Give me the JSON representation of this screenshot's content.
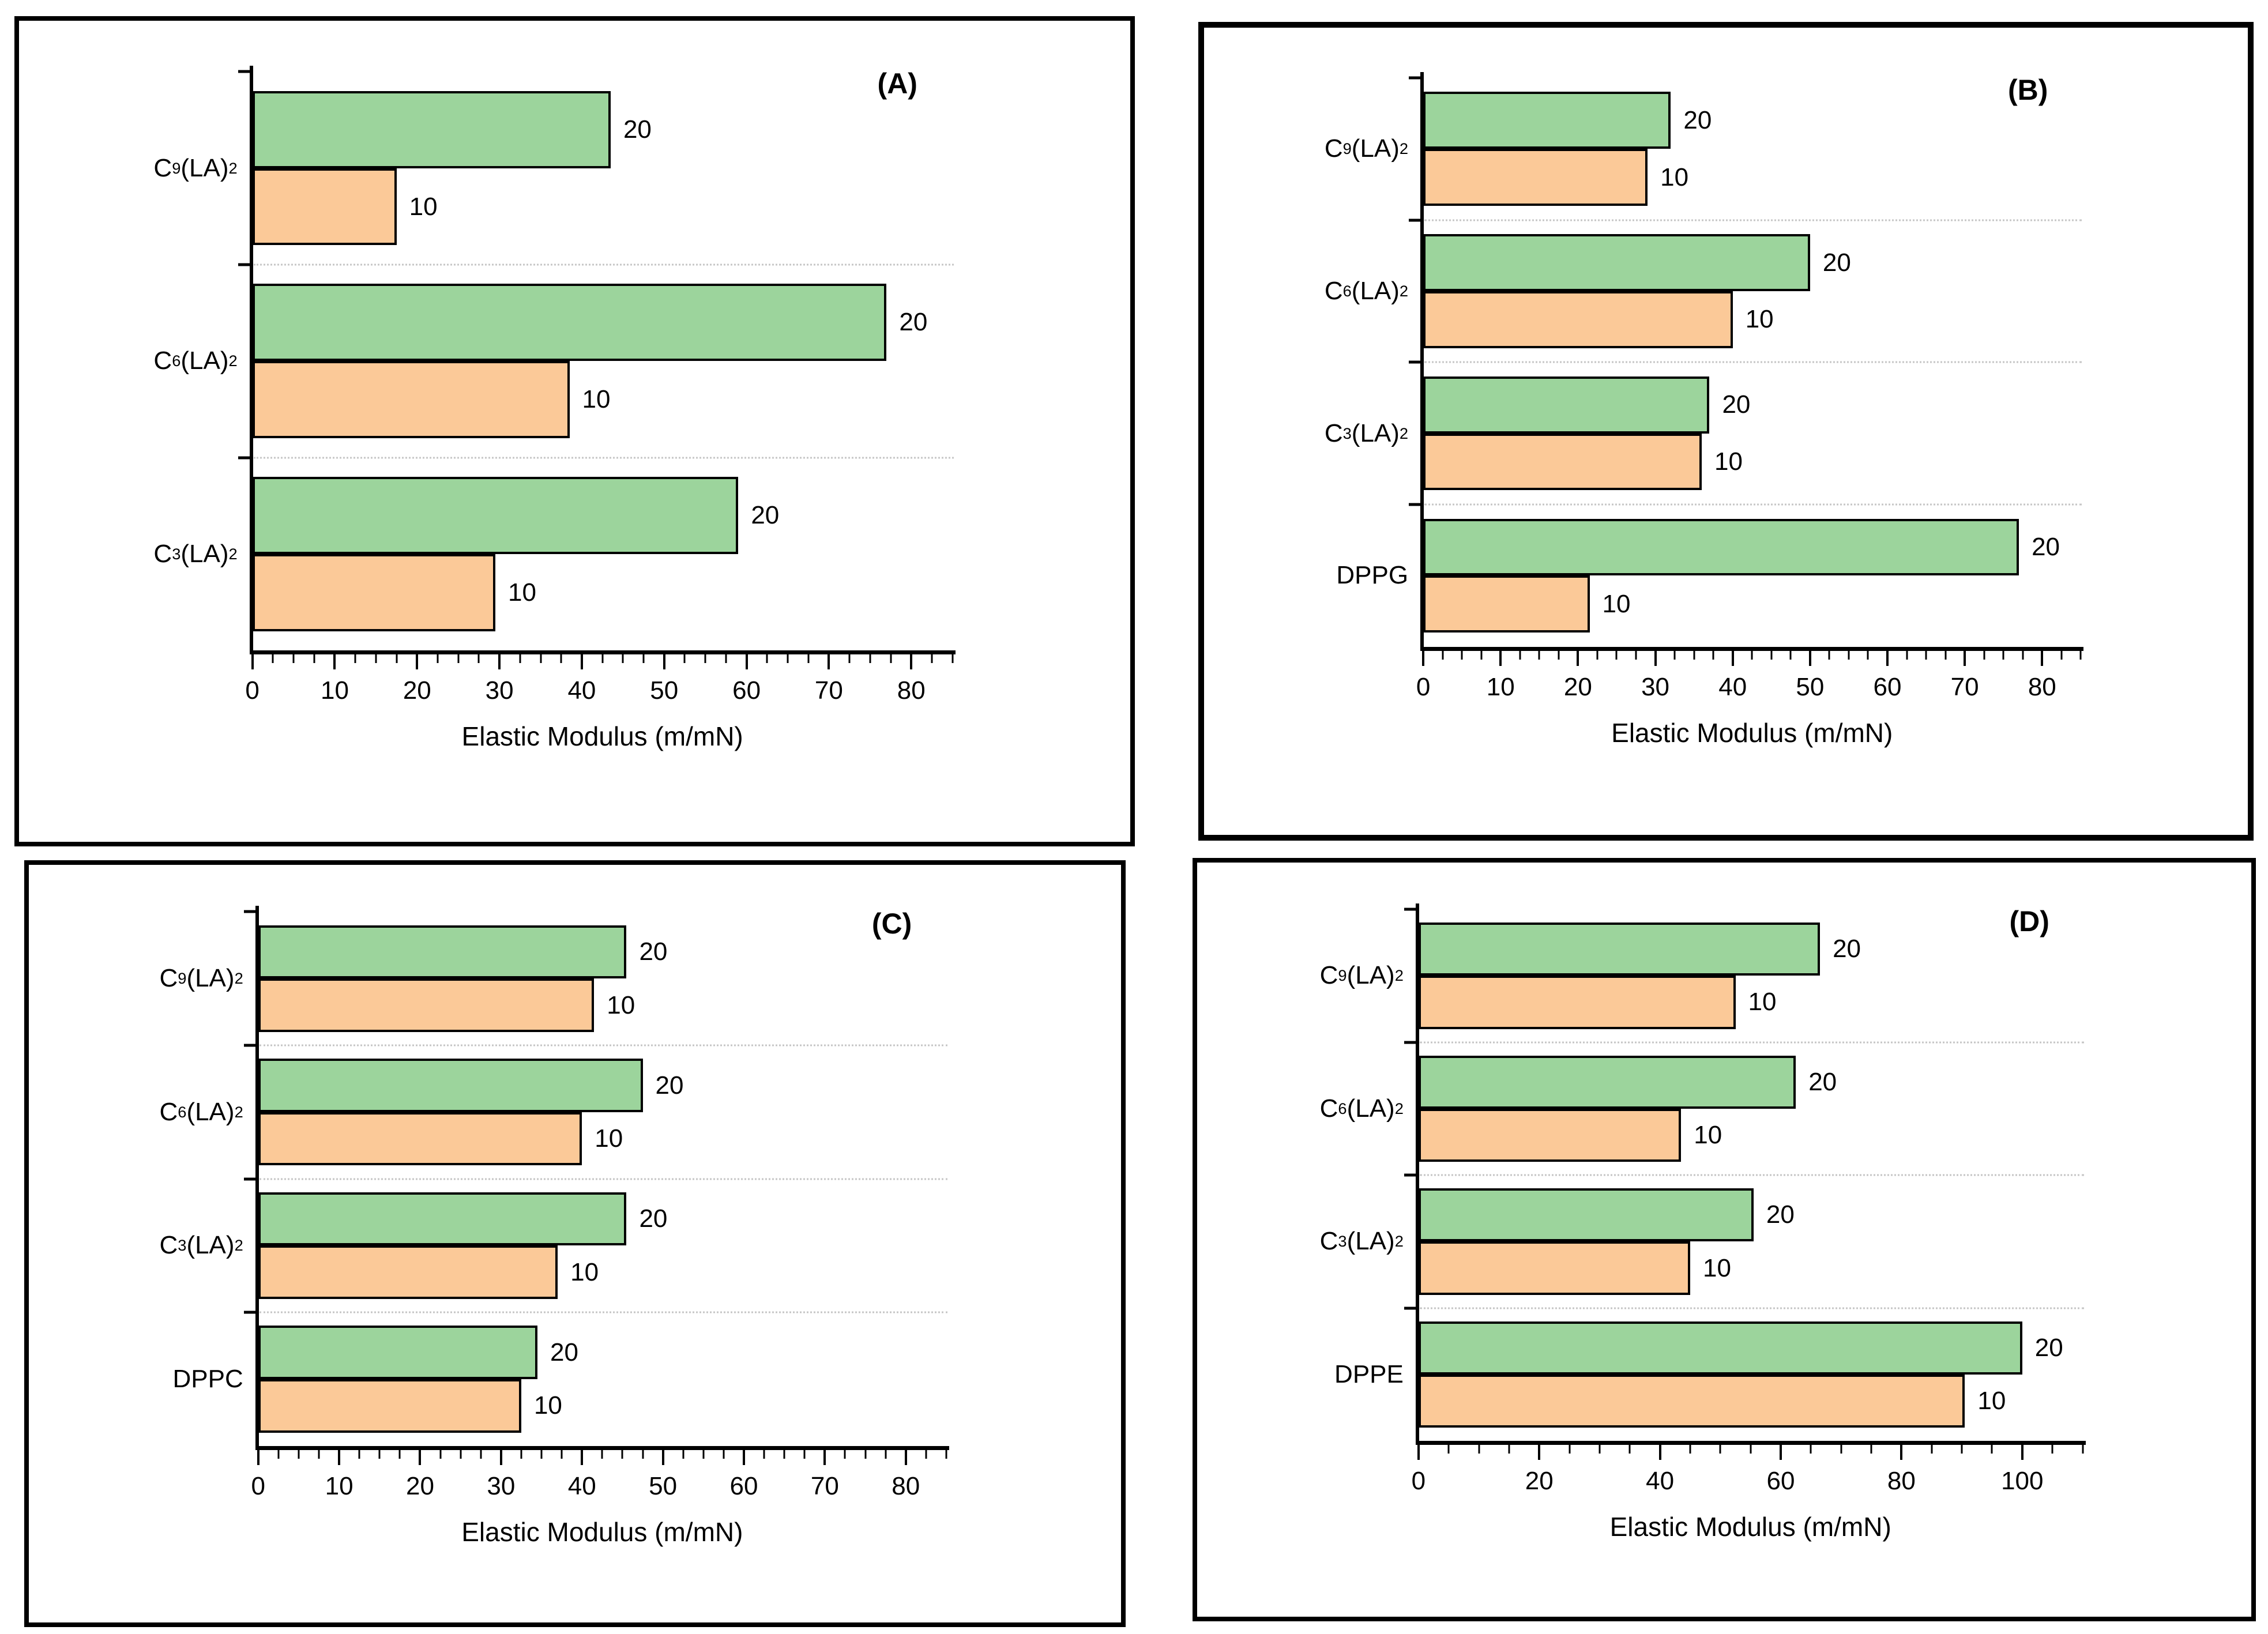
{
  "figure": {
    "description": "Four-panel bar chart figure comparing elastic modulus of lipid monolayers at surface pressures 10 and 20",
    "series_colors": {
      "series_20": "#9CD49C",
      "series_10": "#FBC998"
    },
    "bar_border_color": "#000000",
    "separator_color": "#c6c6c6",
    "axis_color": "#000000"
  },
  "chart_data": [
    {
      "type": "bar",
      "orientation": "horizontal",
      "panel_label": "(A)",
      "categories": [
        "C₉(LA)₂",
        "C₆(LA)₂",
        "C₃(LA)₂"
      ],
      "series": [
        {
          "name": "20",
          "color": "#9CD49C",
          "values": [
            43.5,
            77,
            59
          ]
        },
        {
          "name": "10",
          "color": "#FBC998",
          "values": [
            17.5,
            38.5,
            29.5
          ]
        }
      ],
      "bar_end_labels": [
        "20",
        "10"
      ],
      "xlabel": "Elastic Modulus (m/mN)",
      "xlim": [
        0,
        85
      ],
      "xticks": [
        0,
        10,
        20,
        30,
        40,
        50,
        60,
        70,
        80
      ],
      "minor_tick_step": 2.5,
      "legend": "none",
      "grid": "dotted horizontal separators between category groups"
    },
    {
      "type": "bar",
      "orientation": "horizontal",
      "panel_label": "(B)",
      "categories": [
        "C₉(LA)₂",
        "C₆(LA)₂",
        "C₃(LA)₂",
        "DPPG"
      ],
      "series": [
        {
          "name": "20",
          "color": "#9CD49C",
          "values": [
            32,
            50,
            37,
            77
          ]
        },
        {
          "name": "10",
          "color": "#FBC998",
          "values": [
            29,
            40,
            36,
            21.5
          ]
        }
      ],
      "bar_end_labels": [
        "20",
        "10"
      ],
      "xlabel": "Elastic Modulus (m/mN)",
      "xlim": [
        0,
        85
      ],
      "xticks": [
        0,
        10,
        20,
        30,
        40,
        50,
        60,
        70,
        80
      ],
      "minor_tick_step": 2.5,
      "legend": "none",
      "grid": "dotted horizontal separators between category groups"
    },
    {
      "type": "bar",
      "orientation": "horizontal",
      "panel_label": "(C)",
      "categories": [
        "C₉(LA)₂",
        "C₆(LA)₂",
        "C₃(LA)₂",
        "DPPC"
      ],
      "series": [
        {
          "name": "20",
          "color": "#9CD49C",
          "values": [
            45.5,
            47.5,
            45.5,
            34.5
          ]
        },
        {
          "name": "10",
          "color": "#FBC998",
          "values": [
            41.5,
            40,
            37,
            32.5
          ]
        }
      ],
      "bar_end_labels": [
        "20",
        "10"
      ],
      "xlabel": "Elastic Modulus (m/mN)",
      "xlim": [
        0,
        85
      ],
      "xticks": [
        0,
        10,
        20,
        30,
        40,
        50,
        60,
        70,
        80
      ],
      "minor_tick_step": 2.5,
      "legend": "none",
      "grid": "dotted horizontal separators between category groups"
    },
    {
      "type": "bar",
      "orientation": "horizontal",
      "panel_label": "(D)",
      "categories": [
        "C₉(LA)₂",
        "C₆(LA)₂",
        "C₃(LA)₂",
        "DPPE"
      ],
      "series": [
        {
          "name": "20",
          "color": "#9CD49C",
          "values": [
            66.5,
            62.5,
            55.5,
            100
          ]
        },
        {
          "name": "10",
          "color": "#FBC998",
          "values": [
            52.5,
            43.5,
            45,
            90.5
          ]
        }
      ],
      "bar_end_labels": [
        "20",
        "10"
      ],
      "xlabel": "Elastic Modulus (m/mN)",
      "xlim": [
        0,
        110
      ],
      "xticks": [
        0,
        20,
        40,
        60,
        80,
        100
      ],
      "minor_tick_step": 5,
      "legend": "none",
      "grid": "dotted horizontal separators between category groups"
    }
  ]
}
